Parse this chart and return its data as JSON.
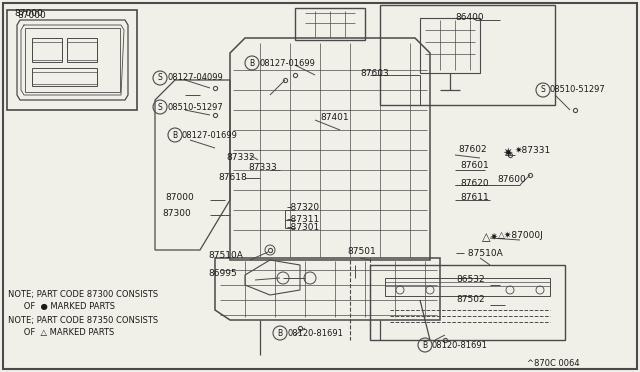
{
  "bg_color": "#f0efe8",
  "line_color": "#4a4a4a",
  "text_color": "#1a1a1a",
  "footer": "^870C 0064",
  "figsize": [
    6.4,
    3.72
  ],
  "dpi": 100,
  "notes_lines": [
    "NOTE; PART CODE 87300 CONSISTS",
    "      OF  ● MARKED PARTS",
    "NOTE; PART CODE 87350 CONSISTS",
    "      OF  △ MARKED PARTS"
  ]
}
